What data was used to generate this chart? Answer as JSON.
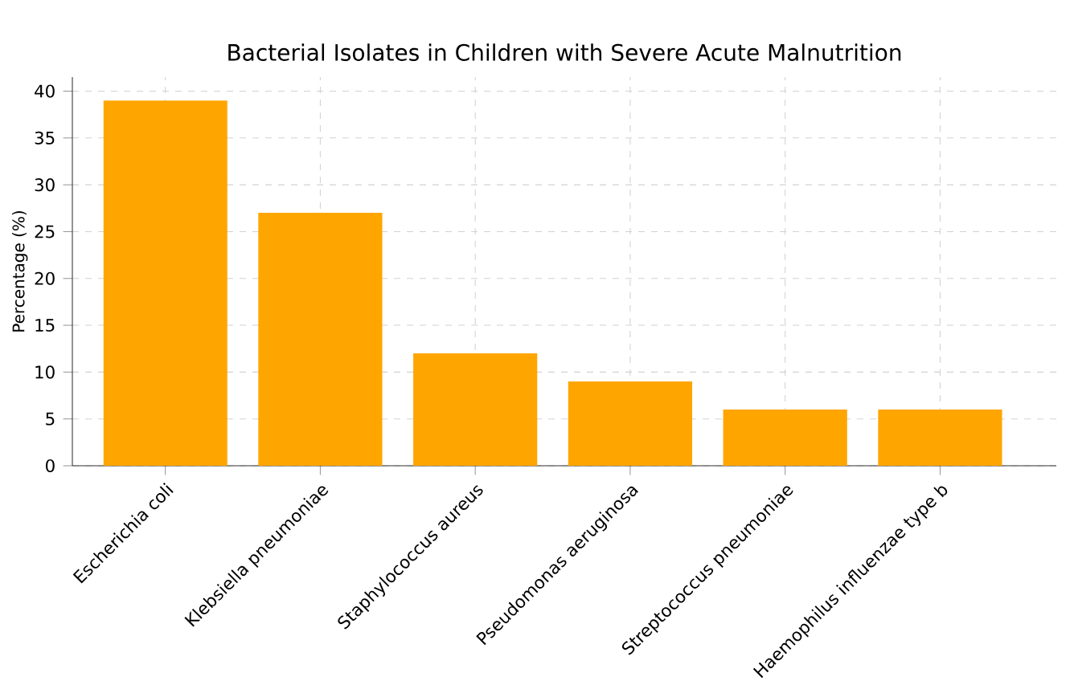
{
  "chart_data": {
    "type": "bar",
    "title": "Bacterial Isolates in Children with Severe Acute Malnutrition",
    "ylabel": "Percentage (%)",
    "categories": [
      "Escherichia coli",
      "Klebsiella pneumoniae",
      "Staphylococcus aureus",
      "Pseudomonas aeruginosa",
      "Streptococcus pneumoniae",
      "Haemophilus influenzae type b"
    ],
    "values": [
      39,
      27,
      12,
      9,
      6,
      6
    ],
    "color": "#ffa500",
    "ylim": [
      0,
      41.5
    ],
    "yticks": [
      0,
      5,
      10,
      15,
      20,
      25,
      30,
      35,
      40
    ],
    "grid": true
  }
}
